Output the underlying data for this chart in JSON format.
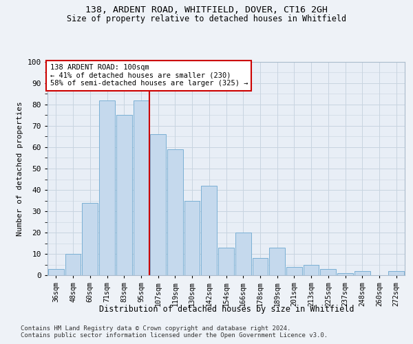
{
  "title1": "138, ARDENT ROAD, WHITFIELD, DOVER, CT16 2GH",
  "title2": "Size of property relative to detached houses in Whitfield",
  "xlabel": "Distribution of detached houses by size in Whitfield",
  "ylabel": "Number of detached properties",
  "categories": [
    "36sqm",
    "48sqm",
    "60sqm",
    "71sqm",
    "83sqm",
    "95sqm",
    "107sqm",
    "119sqm",
    "130sqm",
    "142sqm",
    "154sqm",
    "166sqm",
    "178sqm",
    "189sqm",
    "201sqm",
    "213sqm",
    "225sqm",
    "237sqm",
    "248sqm",
    "260sqm",
    "272sqm"
  ],
  "values": [
    3,
    10,
    34,
    82,
    75,
    82,
    66,
    59,
    35,
    42,
    13,
    20,
    8,
    13,
    4,
    5,
    3,
    1,
    2,
    0,
    2
  ],
  "bar_color": "#c5d9ed",
  "bar_edge_color": "#7aafd4",
  "property_line_x": 5.5,
  "annotation_line1": "138 ARDENT ROAD: 100sqm",
  "annotation_line2": "← 41% of detached houses are smaller (230)",
  "annotation_line3": "58% of semi-detached houses are larger (325) →",
  "annotation_box_color": "#ffffff",
  "annotation_box_edge": "#cc0000",
  "vline_color": "#cc0000",
  "ylim": [
    0,
    100
  ],
  "yticks": [
    0,
    10,
    20,
    30,
    40,
    50,
    60,
    70,
    80,
    90,
    100
  ],
  "footer1": "Contains HM Land Registry data © Crown copyright and database right 2024.",
  "footer2": "Contains public sector information licensed under the Open Government Licence v3.0.",
  "bg_color": "#eef2f7",
  "plot_bg_color": "#e8eef6",
  "grid_color": "#c8d4e0"
}
